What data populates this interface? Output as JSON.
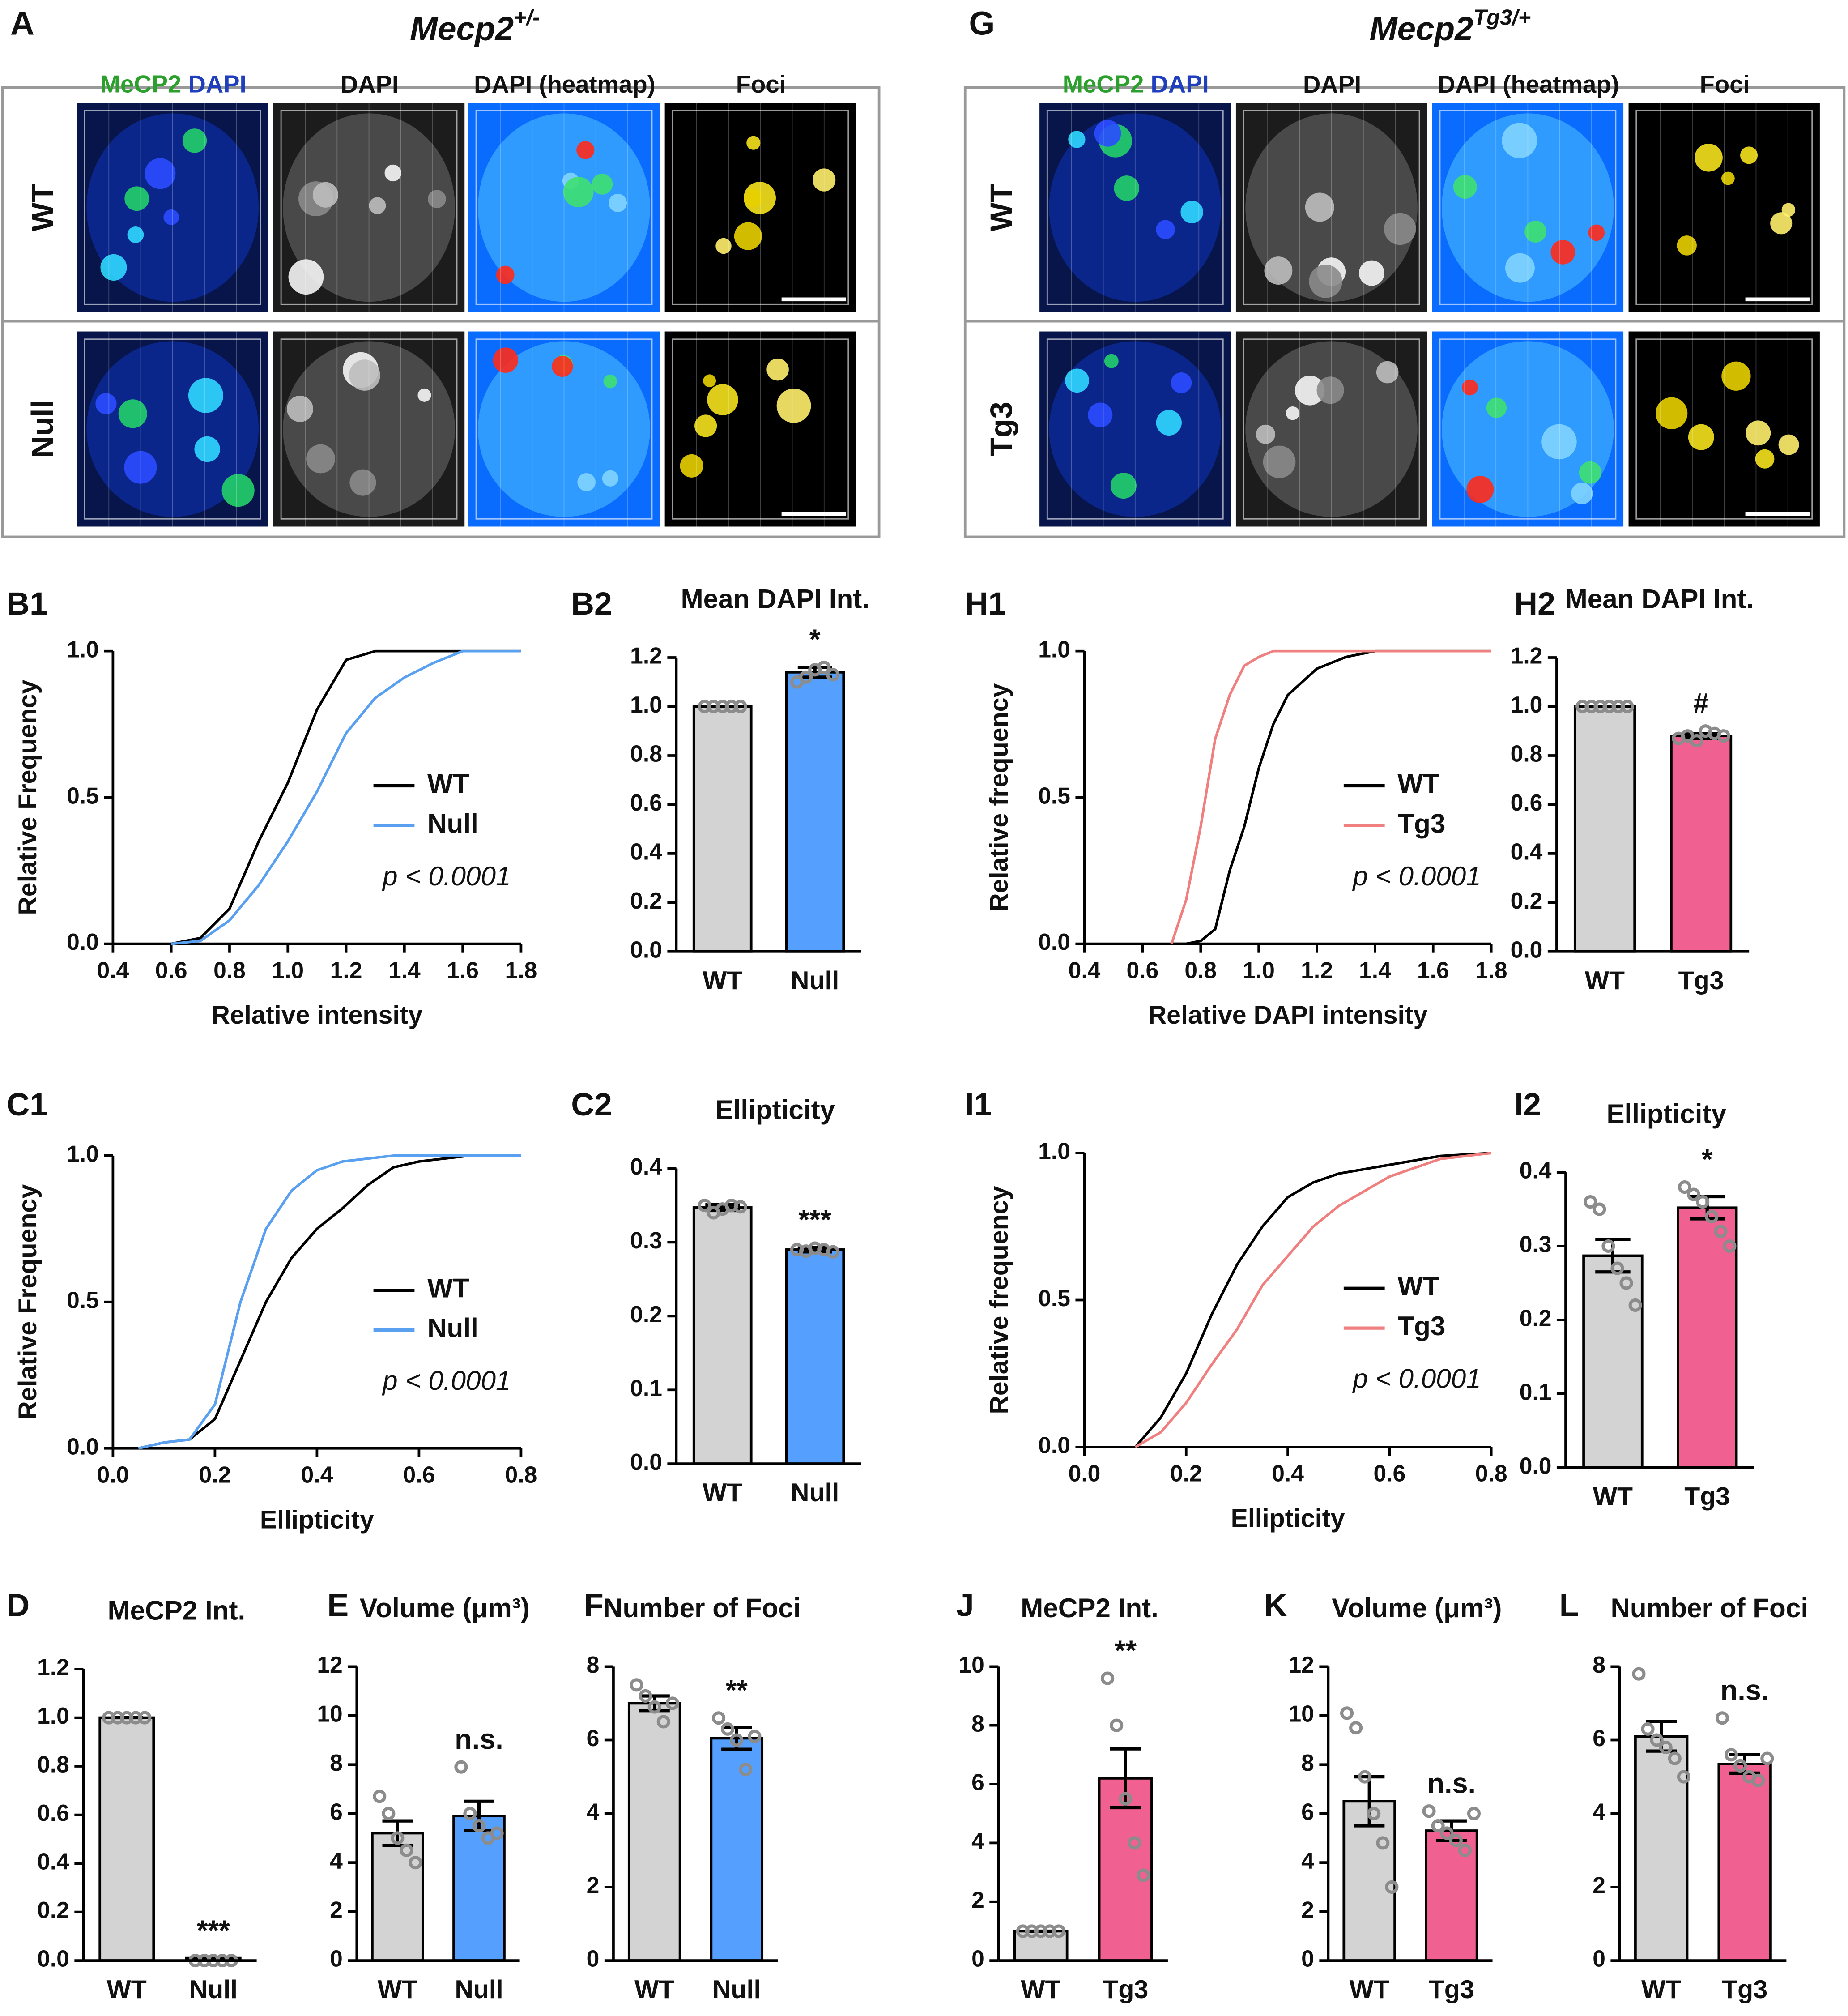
{
  "image_panels": [
    {
      "panel": "A",
      "genotype": {
        "base": "Mecp2",
        "sup": "+/-"
      },
      "channel_label": {
        "mecp2": "MeCP2",
        "dapi": "DAPI"
      },
      "columns": [
        "DAPI",
        "DAPI (heatmap)",
        "Foci"
      ],
      "rows": [
        "WT",
        "Null"
      ]
    },
    {
      "panel": "G",
      "genotype": {
        "base": "Mecp2",
        "sup": "Tg3/+"
      },
      "channel_label": {
        "mecp2": "MeCP2",
        "dapi": "DAPI"
      },
      "columns": [
        "DAPI",
        "DAPI (heatmap)",
        "Foci"
      ],
      "rows": [
        "WT",
        "Tg3"
      ]
    }
  ],
  "chart_data": [
    {
      "type": "line",
      "panel": "B1",
      "xlabel": "Relative intensity",
      "ylabel": "Relative Frequency",
      "annotation": "p < 0.0001",
      "legend": "right",
      "x": [
        0.6,
        0.7,
        0.8,
        0.9,
        1.0,
        1.1,
        1.2,
        1.3,
        1.4,
        1.5,
        1.6,
        1.8
      ],
      "series": [
        {
          "name": "WT",
          "color": "#000000",
          "values": [
            0,
            0.02,
            0.12,
            0.35,
            0.55,
            0.8,
            0.97,
            1,
            1,
            1,
            1,
            1
          ]
        },
        {
          "name": "Null",
          "color": "#5aa0f0",
          "values": [
            0,
            0.01,
            0.08,
            0.2,
            0.35,
            0.52,
            0.72,
            0.84,
            0.91,
            0.96,
            1,
            1
          ]
        }
      ],
      "xlim": [
        0.4,
        1.8
      ],
      "xticks": [
        0.4,
        0.6,
        0.8,
        {
          "value": 1,
          "label": "1.0"
        },
        1.2,
        1.4,
        1.6,
        1.8
      ],
      "ylim": [
        0,
        1
      ],
      "yticks": [
        {
          "value": 0,
          "label": "0.0"
        },
        0.5,
        {
          "value": 1,
          "label": "1.0"
        }
      ]
    },
    {
      "type": "bar",
      "panel": "B2",
      "title": "Mean DAPI Int.",
      "categories": [
        "WT",
        "Null"
      ],
      "values": [
        1.0,
        1.14
      ],
      "errors": [
        0,
        0.02
      ],
      "points": [
        [
          1,
          1,
          1,
          1,
          1
        ],
        [
          1.1,
          1.12,
          1.15,
          1.16,
          1.13
        ]
      ],
      "annotations": [
        null,
        "*"
      ],
      "colors": [
        "#d3d3d3",
        "#55a0ff"
      ],
      "ylim": [
        0,
        1.2
      ],
      "yticks": [
        {
          "value": 0,
          "label": "0.0"
        },
        0.2,
        0.4,
        0.6,
        0.8,
        {
          "value": 1,
          "label": "1.0"
        },
        1.2
      ]
    },
    {
      "type": "line",
      "panel": "C1",
      "xlabel": "Ellipticity",
      "ylabel": "Relative Frequency",
      "annotation": "p < 0.0001",
      "legend": "right",
      "x": [
        0.05,
        0.1,
        0.15,
        0.2,
        0.25,
        0.3,
        0.35,
        0.4,
        0.45,
        0.5,
        0.55,
        0.6,
        0.7,
        0.8
      ],
      "series": [
        {
          "name": "WT",
          "color": "#000000",
          "values": [
            0,
            0.02,
            0.03,
            0.1,
            0.3,
            0.5,
            0.65,
            0.75,
            0.82,
            0.9,
            0.96,
            0.98,
            1,
            1
          ]
        },
        {
          "name": "Null",
          "color": "#5aa0f0",
          "values": [
            0,
            0.02,
            0.03,
            0.15,
            0.5,
            0.75,
            0.88,
            0.95,
            0.98,
            0.99,
            1,
            1,
            1,
            1
          ]
        }
      ],
      "xlim": [
        0,
        0.8
      ],
      "xticks": [
        {
          "value": 0,
          "label": "0.0"
        },
        0.2,
        0.4,
        0.6,
        0.8
      ],
      "ylim": [
        0,
        1
      ],
      "yticks": [
        {
          "value": 0,
          "label": "0.0"
        },
        0.5,
        {
          "value": 1,
          "label": "1.0"
        }
      ]
    },
    {
      "type": "bar",
      "panel": "C2",
      "title": "Ellipticity",
      "categories": [
        "WT",
        "Null"
      ],
      "values": [
        0.347,
        0.29
      ],
      "errors": [
        0.004,
        0.003
      ],
      "points": [
        [
          0.35,
          0.34,
          0.345,
          0.35,
          0.348
        ],
        [
          0.29,
          0.288,
          0.292,
          0.29,
          0.287
        ]
      ],
      "annotations": [
        null,
        "***"
      ],
      "colors": [
        "#d3d3d3",
        "#55a0ff"
      ],
      "ylim": [
        0,
        0.4
      ],
      "yticks": [
        {
          "value": 0,
          "label": "0.0"
        },
        0.1,
        0.2,
        0.3,
        0.4
      ]
    },
    {
      "type": "bar",
      "panel": "D",
      "title": "MeCP2 Int.",
      "categories": [
        "WT",
        "Null"
      ],
      "values": [
        1.0,
        0.01
      ],
      "errors": [
        0,
        0
      ],
      "points": [
        [
          1,
          1,
          1,
          1,
          1
        ],
        [
          0,
          0,
          0,
          0,
          0
        ]
      ],
      "annotations": [
        null,
        "***"
      ],
      "colors": [
        "#d3d3d3",
        "#55a0ff"
      ],
      "ylim": [
        0,
        1.2
      ],
      "yticks": [
        {
          "value": 0,
          "label": "0.0"
        },
        0.2,
        0.4,
        0.6,
        0.8,
        {
          "value": 1,
          "label": "1.0"
        },
        1.2
      ]
    },
    {
      "type": "bar",
      "panel": "E",
      "title": "Volume (μm³)",
      "categories": [
        "WT",
        "Null"
      ],
      "values": [
        5.2,
        5.9
      ],
      "errors": [
        0.5,
        0.6
      ],
      "points": [
        [
          6.7,
          6,
          5,
          4.5,
          4
        ],
        [
          7.9,
          6,
          5.5,
          5,
          5.2
        ]
      ],
      "annotations": [
        null,
        "n.s."
      ],
      "colors": [
        "#d3d3d3",
        "#55a0ff"
      ],
      "ylim": [
        0,
        12
      ],
      "yticks": [
        0,
        2,
        4,
        6,
        8,
        10,
        12
      ]
    },
    {
      "type": "bar",
      "panel": "F",
      "title": "Number of Foci",
      "categories": [
        "WT",
        "Null"
      ],
      "values": [
        7,
        6.05
      ],
      "errors": [
        0.2,
        0.3
      ],
      "points": [
        [
          7.5,
          7.2,
          6.9,
          6.5,
          7
        ],
        [
          6.6,
          6.3,
          6,
          5.2,
          6.1
        ]
      ],
      "annotations": [
        null,
        "**"
      ],
      "colors": [
        "#d3d3d3",
        "#55a0ff"
      ],
      "ylim": [
        0,
        8
      ],
      "yticks": [
        0,
        2,
        4,
        6,
        8
      ]
    },
    {
      "type": "line",
      "panel": "H1",
      "xlabel": "Relative DAPI intensity",
      "ylabel": "Relative frequency",
      "annotation": "p < 0.0001",
      "legend": "right",
      "x": [
        0.7,
        0.75,
        0.8,
        0.85,
        0.9,
        0.95,
        1.0,
        1.05,
        1.1,
        1.2,
        1.3,
        1.4,
        1.8
      ],
      "series": [
        {
          "name": "WT",
          "color": "#000000",
          "values": [
            0,
            0,
            0.01,
            0.05,
            0.25,
            0.4,
            0.6,
            0.75,
            0.85,
            0.94,
            0.98,
            1,
            1
          ]
        },
        {
          "name": "Tg3",
          "color": "#f08080",
          "values": [
            0,
            0.15,
            0.4,
            0.7,
            0.85,
            0.95,
            0.98,
            1,
            1,
            1,
            1,
            1,
            1
          ]
        }
      ],
      "xlim": [
        0.4,
        1.8
      ],
      "xticks": [
        0.4,
        0.6,
        0.8,
        {
          "value": 1,
          "label": "1.0"
        },
        1.2,
        1.4,
        1.6,
        1.8
      ],
      "ylim": [
        0,
        1
      ],
      "yticks": [
        {
          "value": 0,
          "label": "0.0"
        },
        0.5,
        {
          "value": 1,
          "label": "1.0"
        }
      ]
    },
    {
      "type": "bar",
      "panel": "H2",
      "title": "Mean DAPI Int.",
      "categories": [
        "WT",
        "Tg3"
      ],
      "values": [
        1.0,
        0.88
      ],
      "errors": [
        0,
        0.01
      ],
      "points": [
        [
          1,
          1,
          1,
          1,
          1,
          1
        ],
        [
          0.87,
          0.88,
          0.86,
          0.9,
          0.89,
          0.88
        ]
      ],
      "annotations": [
        null,
        "#"
      ],
      "colors": [
        "#d3d3d3",
        "#f06090"
      ],
      "ylim": [
        0,
        1.2
      ],
      "yticks": [
        {
          "value": 0,
          "label": "0.0"
        },
        0.2,
        0.4,
        0.6,
        0.8,
        {
          "value": 1,
          "label": "1.0"
        },
        1.2
      ]
    },
    {
      "type": "line",
      "panel": "I1",
      "xlabel": "Ellipticity",
      "ylabel": "Relative frequency",
      "annotation": "p < 0.0001",
      "legend": "right",
      "x": [
        0.1,
        0.15,
        0.2,
        0.25,
        0.3,
        0.35,
        0.4,
        0.45,
        0.5,
        0.6,
        0.7,
        0.8
      ],
      "series": [
        {
          "name": "WT",
          "color": "#000000",
          "values": [
            0,
            0.1,
            0.25,
            0.45,
            0.62,
            0.75,
            0.85,
            0.9,
            0.93,
            0.96,
            0.99,
            1
          ]
        },
        {
          "name": "Tg3",
          "color": "#f08080",
          "values": [
            0,
            0.05,
            0.15,
            0.28,
            0.4,
            0.55,
            0.65,
            0.75,
            0.82,
            0.92,
            0.98,
            1
          ]
        }
      ],
      "xlim": [
        0,
        0.8
      ],
      "xticks": [
        {
          "value": 0,
          "label": "0.0"
        },
        0.2,
        0.4,
        0.6,
        0.8
      ],
      "ylim": [
        0,
        1
      ],
      "yticks": [
        {
          "value": 0,
          "label": "0.0"
        },
        0.5,
        {
          "value": 1,
          "label": "1.0"
        }
      ]
    },
    {
      "type": "bar",
      "panel": "I2",
      "title": "Ellipticity",
      "categories": [
        "WT",
        "Tg3"
      ],
      "values": [
        0.287,
        0.352
      ],
      "errors": [
        0.022,
        0.015
      ],
      "points": [
        [
          0.36,
          0.35,
          0.3,
          0.27,
          0.25,
          0.22
        ],
        [
          0.38,
          0.37,
          0.36,
          0.34,
          0.32,
          0.3
        ]
      ],
      "annotations": [
        null,
        "*"
      ],
      "colors": [
        "#d3d3d3",
        "#f06090"
      ],
      "ylim": [
        0,
        0.4
      ],
      "yticks": [
        {
          "value": 0,
          "label": "0.0"
        },
        0.1,
        0.2,
        0.3,
        0.4
      ]
    },
    {
      "type": "bar",
      "panel": "J",
      "title": "MeCP2 Int.",
      "categories": [
        "WT",
        "Tg3"
      ],
      "values": [
        1,
        6.2
      ],
      "errors": [
        0,
        1
      ],
      "points": [
        [
          1,
          1,
          1,
          1,
          1
        ],
        [
          9.6,
          8,
          5.5,
          4,
          2.9
        ]
      ],
      "annotations": [
        null,
        "**"
      ],
      "colors": [
        "#d3d3d3",
        "#f06090"
      ],
      "ylim": [
        0,
        10
      ],
      "yticks": [
        0,
        2,
        4,
        6,
        8,
        10
      ]
    },
    {
      "type": "bar",
      "panel": "K",
      "title": "Volume (μm³)",
      "categories": [
        "WT",
        "Tg3"
      ],
      "values": [
        6.5,
        5.3
      ],
      "errors": [
        1,
        0.4
      ],
      "points": [
        [
          10.1,
          9.5,
          7.5,
          6,
          4.8,
          3
        ],
        [
          6.1,
          5.5,
          5.2,
          4.9,
          4.5,
          6
        ]
      ],
      "annotations": [
        null,
        "n.s."
      ],
      "colors": [
        "#d3d3d3",
        "#f06090"
      ],
      "ylim": [
        0,
        12
      ],
      "yticks": [
        0,
        2,
        4,
        6,
        8,
        10,
        12
      ]
    },
    {
      "type": "bar",
      "panel": "L",
      "title": "Number of Foci",
      "categories": [
        "WT",
        "Tg3"
      ],
      "values": [
        6.1,
        5.35
      ],
      "errors": [
        0.4,
        0.25
      ],
      "points": [
        [
          7.8,
          6.3,
          6,
          5.8,
          5.5,
          5
        ],
        [
          6.6,
          5.6,
          5.3,
          5,
          4.9,
          5.5
        ]
      ],
      "annotations": [
        null,
        "n.s."
      ],
      "colors": [
        "#d3d3d3",
        "#f06090"
      ],
      "ylim": [
        0,
        8
      ],
      "yticks": [
        0,
        2,
        4,
        6,
        8
      ]
    }
  ]
}
